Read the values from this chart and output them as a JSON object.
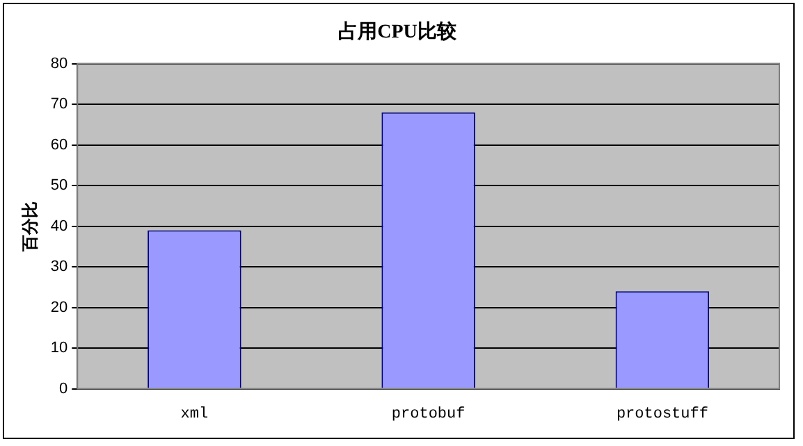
{
  "chart_data": {
    "type": "bar",
    "title": "占用CPU比较",
    "ylabel": "百分比",
    "categories": [
      "xml",
      "protobuf",
      "protostuff"
    ],
    "values": [
      39,
      68,
      24
    ],
    "color": "#9999ff",
    "ylim": [
      0,
      80
    ],
    "yticks": [
      0,
      10,
      20,
      30,
      40,
      50,
      60,
      70,
      80
    ],
    "grid": "y",
    "legend": false
  }
}
